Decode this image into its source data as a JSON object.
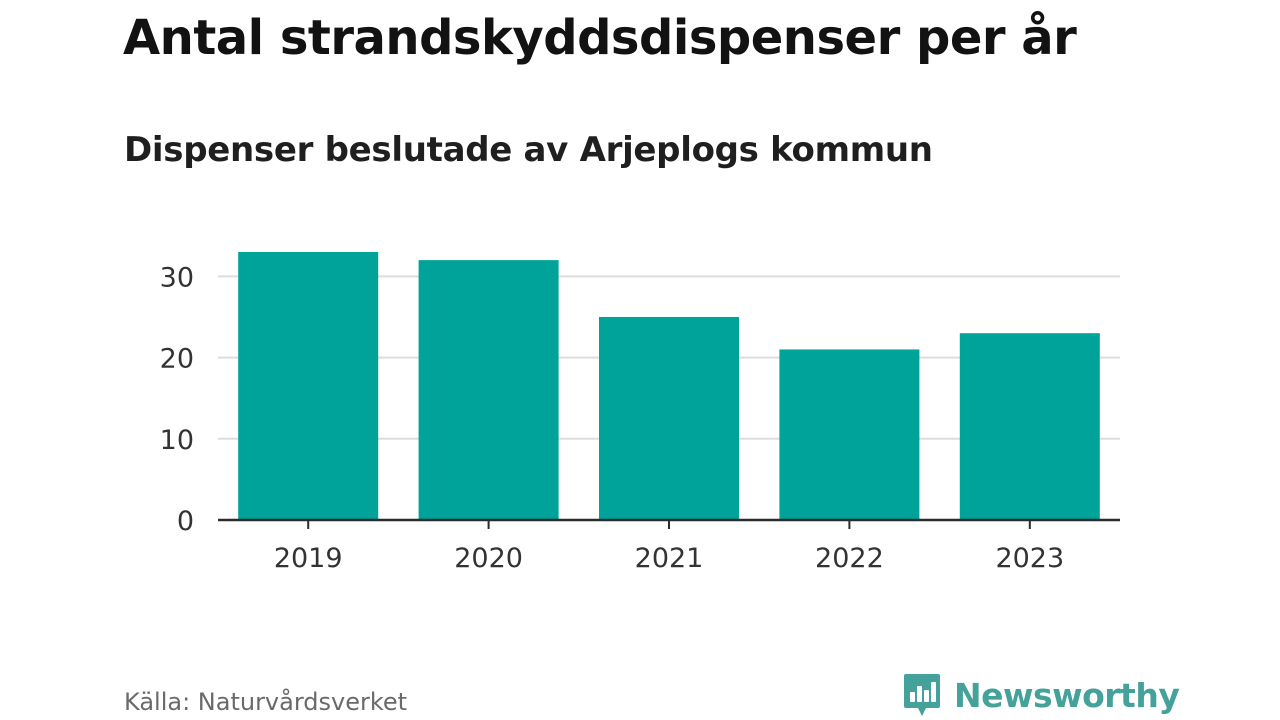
{
  "chart_data": {
    "type": "bar",
    "title": "Antal strandskyddsdispenser per år",
    "subtitle": "Dispenser beslutade av Arjeplogs kommun",
    "categories": [
      "2019",
      "2020",
      "2021",
      "2022",
      "2023"
    ],
    "values": [
      33,
      32,
      25,
      21,
      23
    ],
    "ylim": [
      0,
      33
    ],
    "yticks": [
      0,
      10,
      20,
      30
    ],
    "xlabel": "",
    "ylabel": "",
    "grid": true,
    "bar_color": "#00a39a"
  },
  "source": "Källa: Naturvårdsverket",
  "brand": {
    "name": "Newsworthy",
    "icon": "newsworthy-logo-icon",
    "color": "#45a29a"
  }
}
